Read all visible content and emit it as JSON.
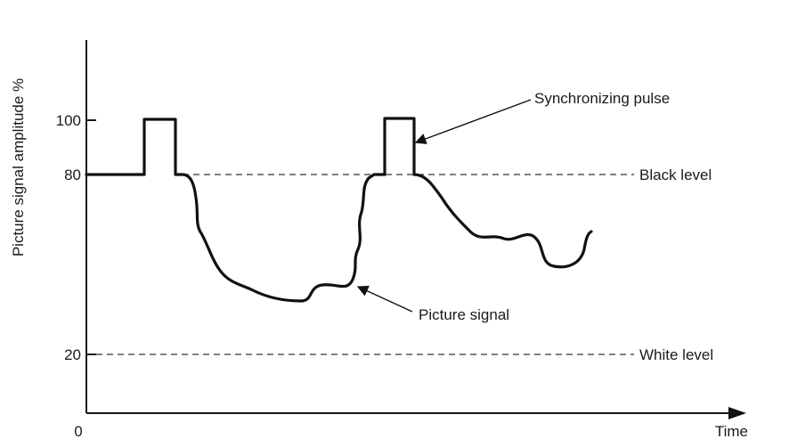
{
  "chart_data": {
    "type": "line",
    "ylabel": "Picture signal amplitude %",
    "xlabel": "Time",
    "yticks": [
      "100",
      "80",
      "20"
    ],
    "origin_label": "0",
    "levels": [
      {
        "value": 80,
        "label": "Black level"
      },
      {
        "value": 20,
        "label": "White level"
      }
    ],
    "annotations": {
      "sync": "Synchronizing pulse",
      "picture": "Picture signal"
    },
    "ylim": [
      0,
      120
    ]
  },
  "colors": {
    "ink": "#111111",
    "paper": "#ffffff"
  }
}
